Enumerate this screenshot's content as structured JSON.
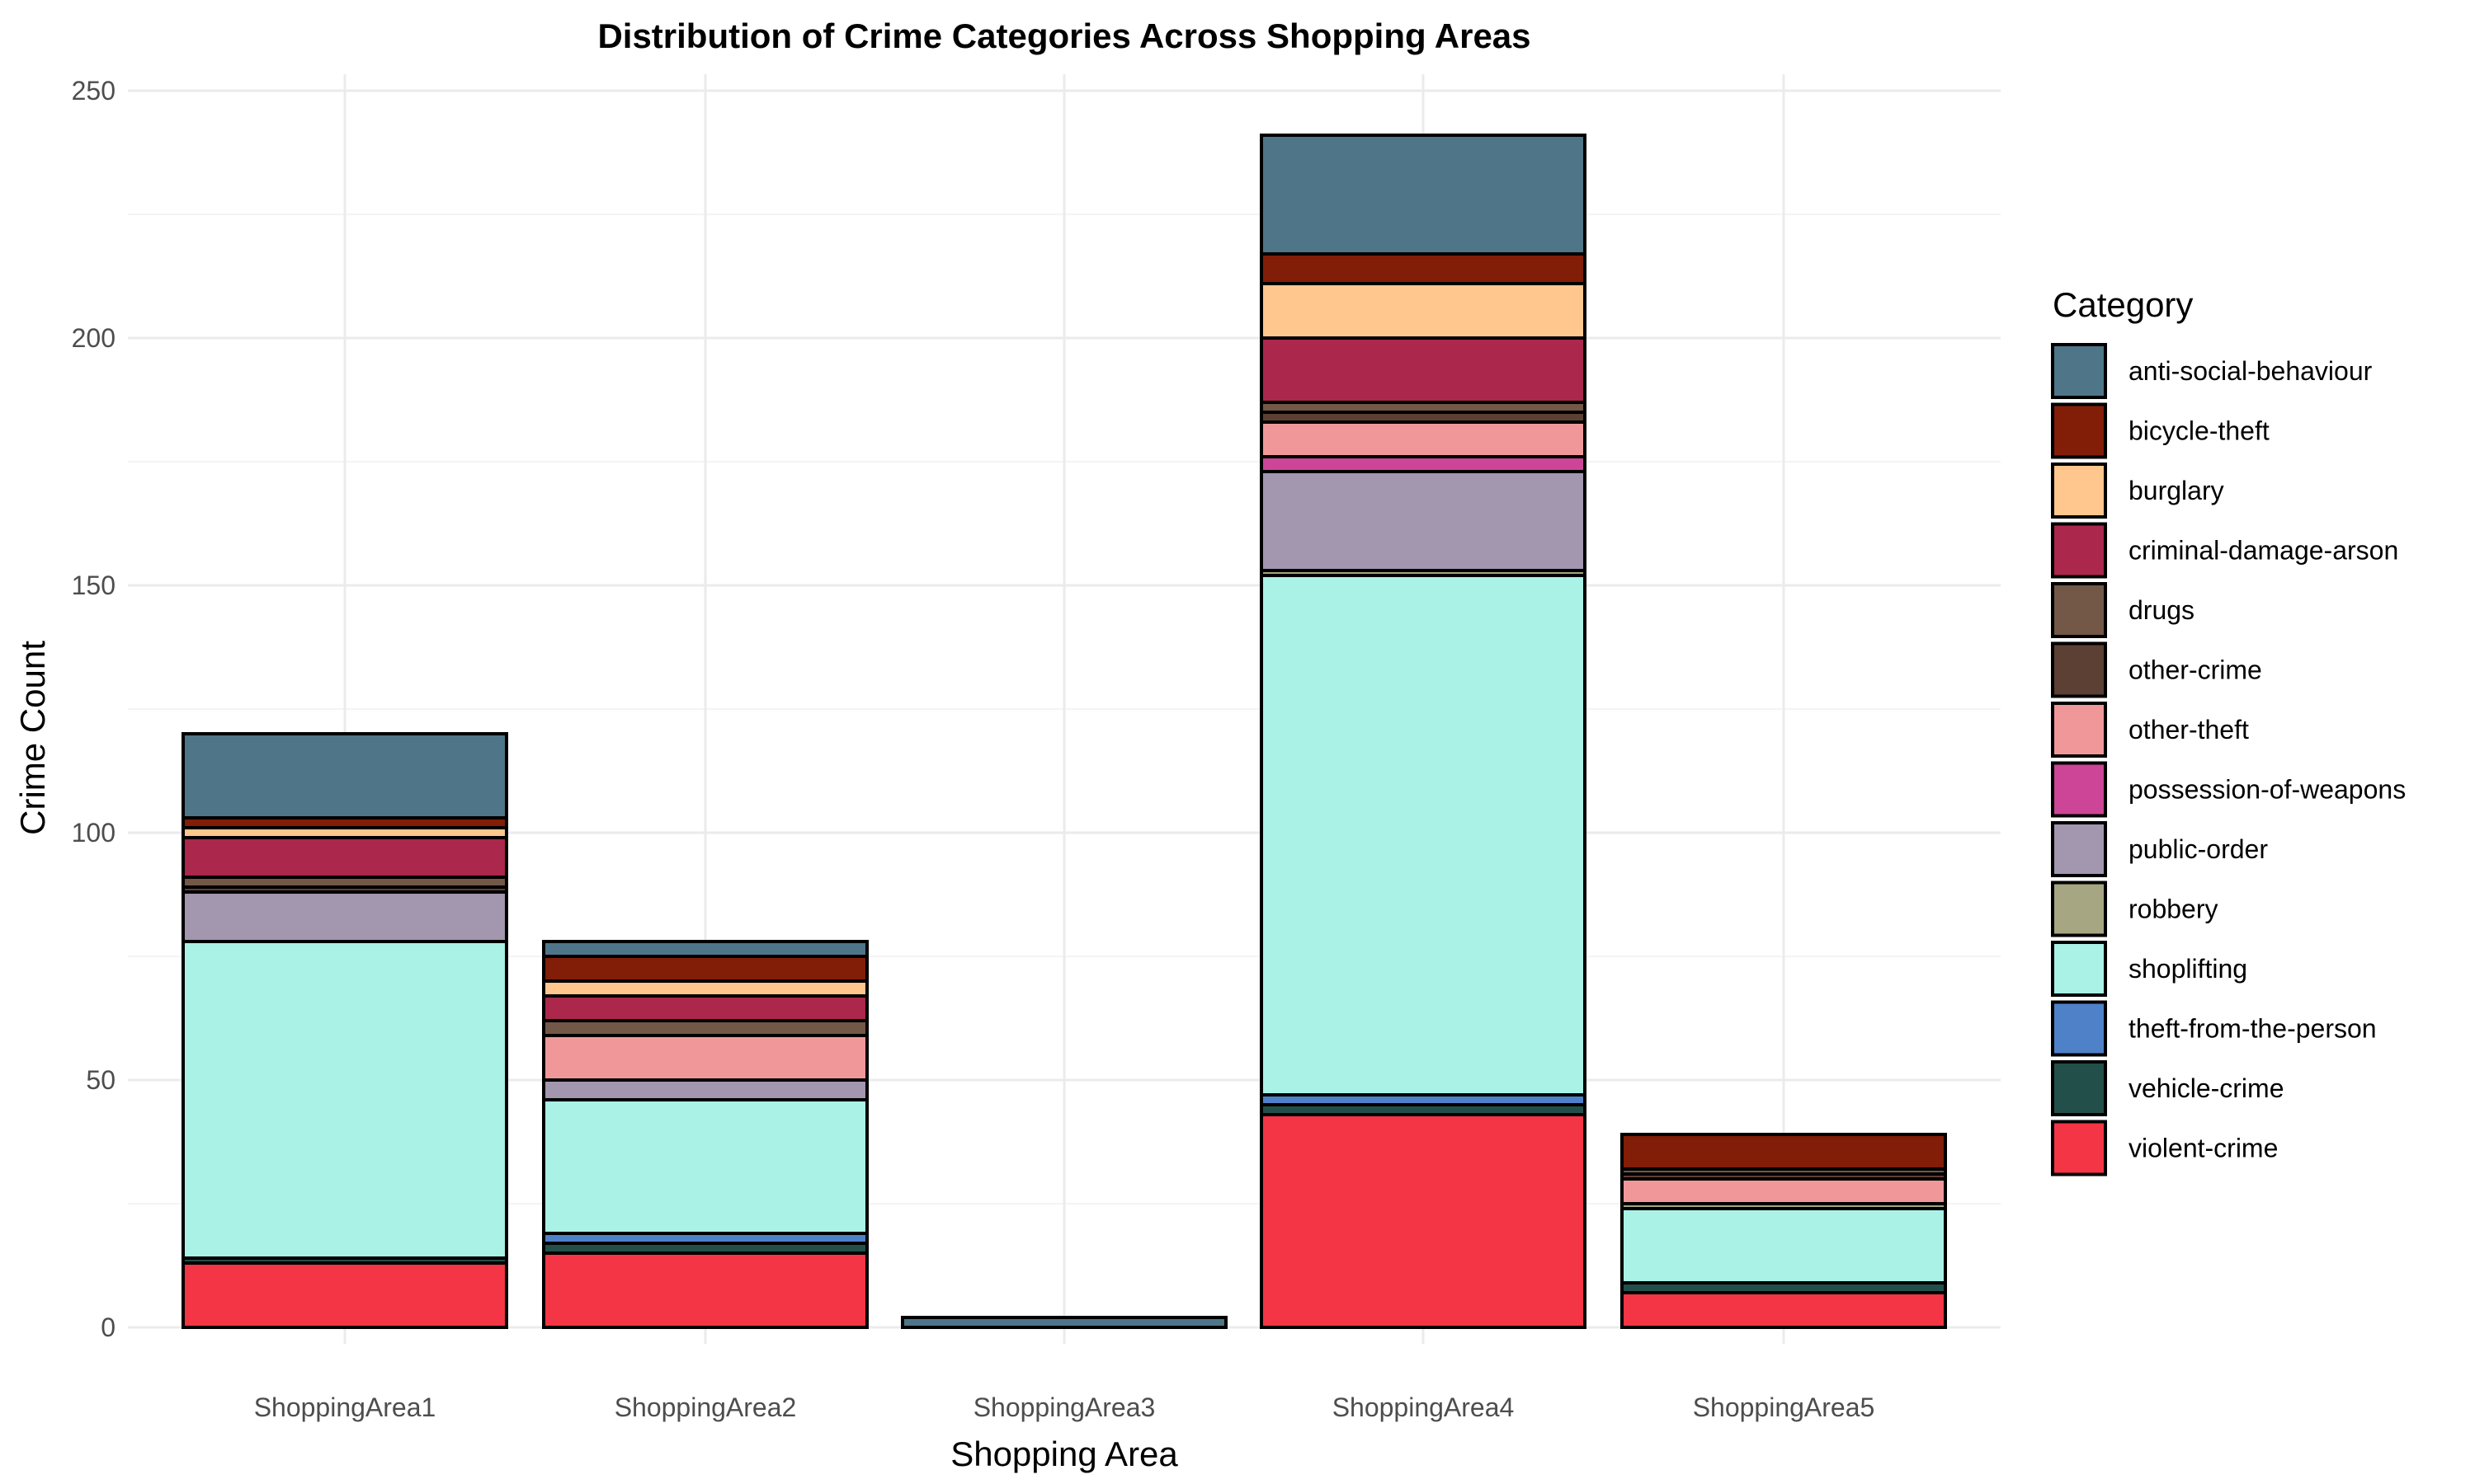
{
  "chart_data": {
    "type": "bar",
    "stacked": true,
    "title": "Distribution of Crime Categories Across Shopping Areas",
    "xlabel": "Shopping Area",
    "ylabel": "Crime Count",
    "ylim": [
      0,
      250
    ],
    "yticks": [
      0,
      50,
      100,
      150,
      200,
      250
    ],
    "grid": true,
    "legend_title": "Category",
    "legend_position": "right",
    "categories": [
      "ShoppingArea1",
      "ShoppingArea2",
      "ShoppingArea3",
      "ShoppingArea4",
      "ShoppingArea5"
    ],
    "series": [
      {
        "name": "violent-crime",
        "color": "#F43545",
        "values": [
          13,
          15,
          0,
          43,
          7
        ]
      },
      {
        "name": "vehicle-crime",
        "color": "#234F4A",
        "values": [
          1,
          2,
          0,
          2,
          2
        ]
      },
      {
        "name": "theft-from-the-person",
        "color": "#4F81C9",
        "values": [
          0,
          2,
          0,
          2,
          0
        ]
      },
      {
        "name": "shoplifting",
        "color": "#AAF1E6",
        "values": [
          64,
          27,
          0,
          105,
          15
        ]
      },
      {
        "name": "robbery",
        "color": "#A6A682",
        "values": [
          0,
          0,
          0,
          1,
          1
        ]
      },
      {
        "name": "public-order",
        "color": "#A396AF",
        "values": [
          10,
          4,
          0,
          20,
          0
        ]
      },
      {
        "name": "possession-of-weapons",
        "color": "#CC4596",
        "values": [
          0,
          0,
          0,
          3,
          0
        ]
      },
      {
        "name": "other-theft",
        "color": "#F09899",
        "values": [
          0,
          9,
          0,
          7,
          5
        ]
      },
      {
        "name": "other-crime",
        "color": "#5C4033",
        "values": [
          1,
          0,
          0,
          2,
          1
        ]
      },
      {
        "name": "drugs",
        "color": "#735848",
        "values": [
          2,
          3,
          0,
          2,
          1
        ]
      },
      {
        "name": "criminal-damage-arson",
        "color": "#AB274C",
        "values": [
          8,
          5,
          0,
          13,
          0
        ]
      },
      {
        "name": "burglary",
        "color": "#FFC68E",
        "values": [
          2,
          3,
          0,
          11,
          0
        ]
      },
      {
        "name": "bicycle-theft",
        "color": "#821D08",
        "values": [
          2,
          5,
          0,
          6,
          7
        ]
      },
      {
        "name": "anti-social-behaviour",
        "color": "#4F7589",
        "values": [
          17,
          3,
          2,
          24,
          0
        ]
      }
    ],
    "legend_order": [
      "anti-social-behaviour",
      "bicycle-theft",
      "burglary",
      "criminal-damage-arson",
      "drugs",
      "other-crime",
      "other-theft",
      "possession-of-weapons",
      "public-order",
      "robbery",
      "shoplifting",
      "theft-from-the-person",
      "vehicle-crime",
      "violent-crime"
    ]
  }
}
